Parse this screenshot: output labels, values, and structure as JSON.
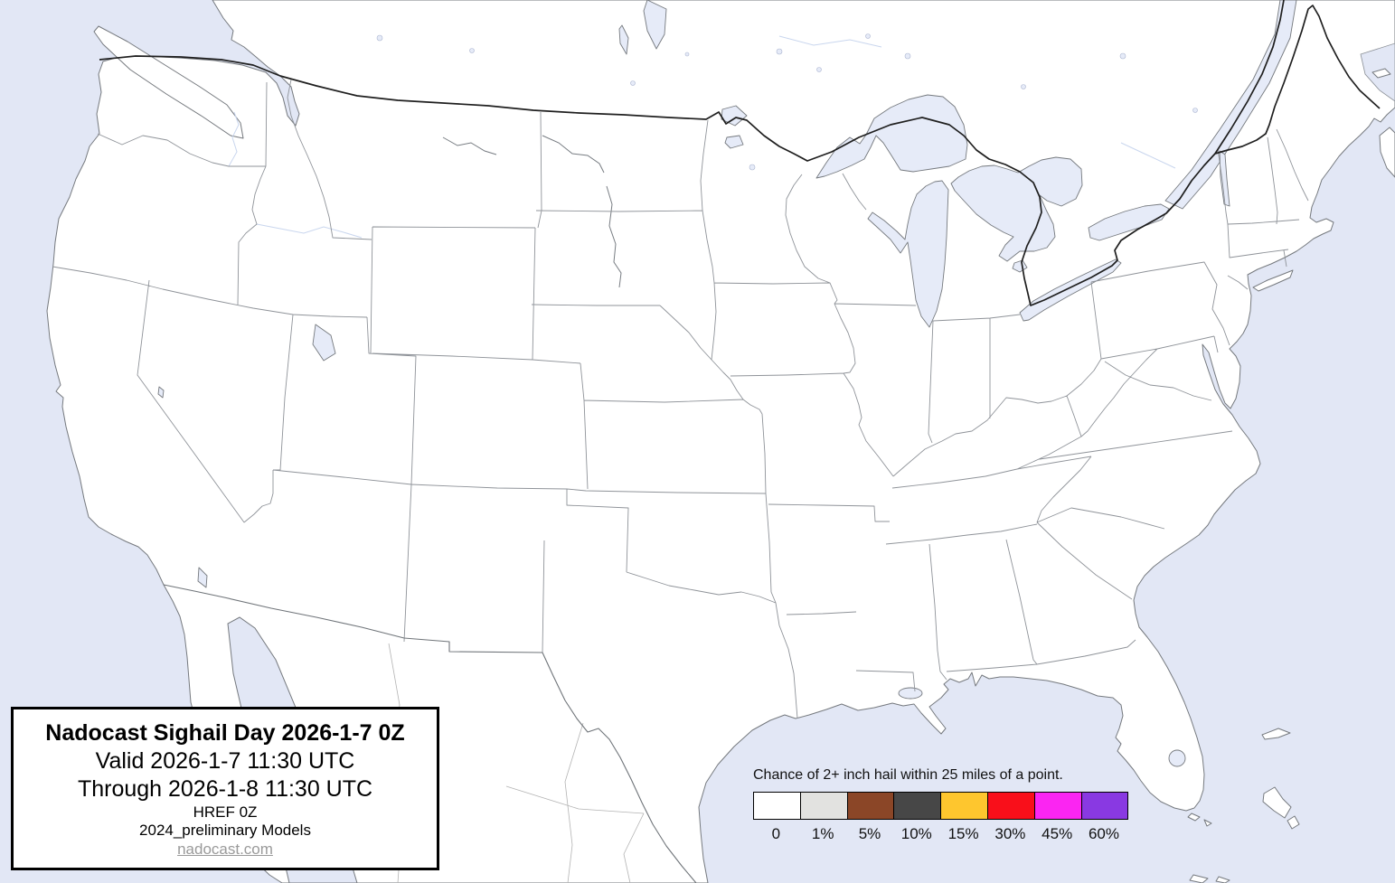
{
  "map": {
    "region_name": "conus-forecast-map",
    "water_color": "#e2e7f5",
    "land_color": "#ffffff",
    "lake_color": "#e6ebf8",
    "coast_color": "#75797e",
    "state_border_color": "#8f9399",
    "international_border_color": "#1f1f1f"
  },
  "title_box": {
    "title": "Nadocast Sighail Day 2026-1-7 0Z",
    "valid_line": "Valid 2026-1-7 11:30 UTC",
    "through_line": "Through 2026-1-8 11:30 UTC",
    "model_line": "HREF 0Z",
    "models_note": "2024_preliminary Models",
    "website": "nadocast.com"
  },
  "legend": {
    "caption": "Chance of 2+ inch hail within 25 miles of a point.",
    "entries": [
      {
        "label": "0",
        "color": "#ffffff"
      },
      {
        "label": "1%",
        "color": "#e2e2e0"
      },
      {
        "label": "5%",
        "color": "#8b4627"
      },
      {
        "label": "10%",
        "color": "#474747"
      },
      {
        "label": "15%",
        "color": "#fec62e"
      },
      {
        "label": "30%",
        "color": "#f90f1a"
      },
      {
        "label": "45%",
        "color": "#fb25f2"
      },
      {
        "label": "60%",
        "color": "#8939e2"
      }
    ]
  }
}
